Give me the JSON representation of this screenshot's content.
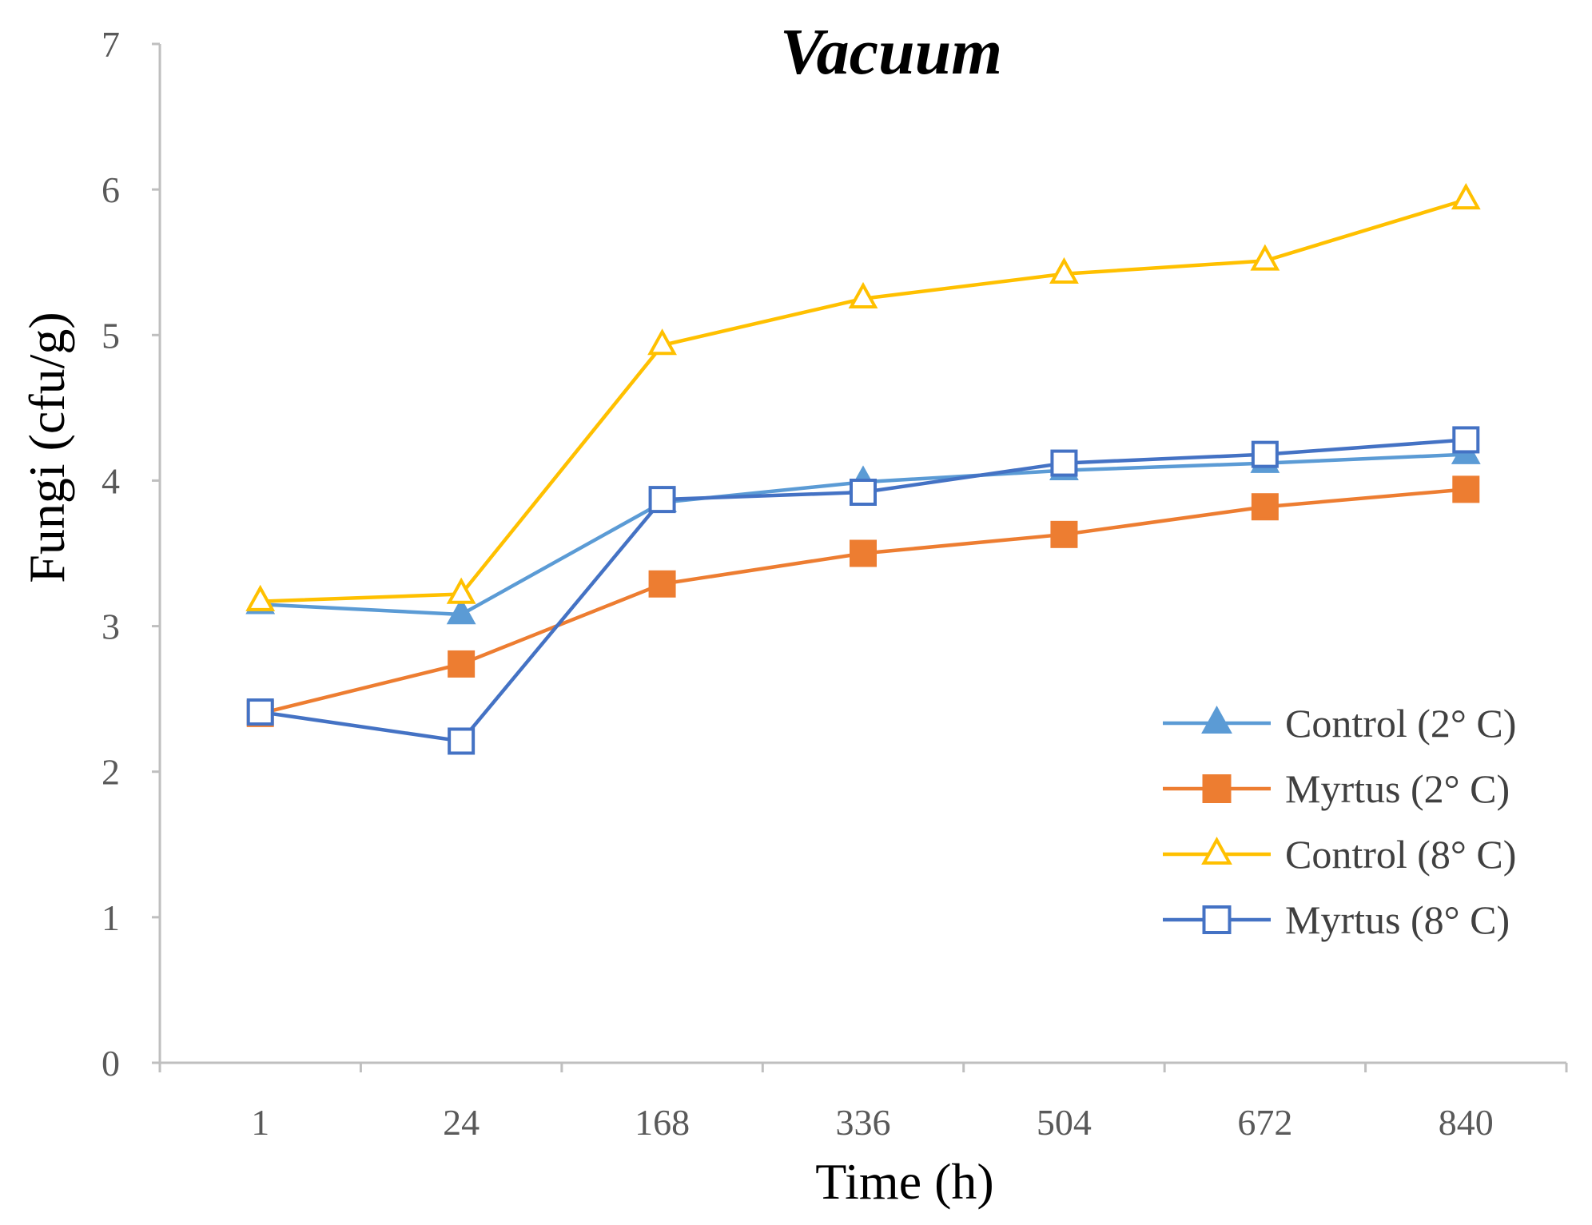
{
  "chart_data": {
    "type": "line",
    "title": "Vacuum",
    "xlabel": "Time (h)",
    "ylabel": "Fungi (cfu/g)",
    "categories": [
      "1",
      "24",
      "168",
      "336",
      "504",
      "672",
      "840"
    ],
    "ylim": [
      0,
      7
    ],
    "yticks": [
      "0",
      "1",
      "2",
      "3",
      "4",
      "5",
      "6",
      "7"
    ],
    "grid": false,
    "legend_position": "bottom-right",
    "series": [
      {
        "name": "Control (2° C)",
        "values": [
          3.15,
          3.08,
          3.85,
          3.99,
          4.07,
          4.12,
          4.18
        ],
        "color": "#5B9BD5",
        "marker": "triangle",
        "filled": true
      },
      {
        "name": "Myrtus (2° C)",
        "values": [
          2.4,
          2.74,
          3.29,
          3.5,
          3.63,
          3.82,
          3.94
        ],
        "color": "#ED7D31",
        "marker": "square",
        "filled": true
      },
      {
        "name": "Control (8° C)",
        "values": [
          3.17,
          3.22,
          4.93,
          5.25,
          5.42,
          5.51,
          5.93
        ],
        "color": "#FFC000",
        "marker": "triangle",
        "filled": false
      },
      {
        "name": "Myrtus (8° C)",
        "values": [
          2.41,
          2.21,
          3.87,
          3.92,
          4.12,
          4.18,
          4.28
        ],
        "color": "#4472C4",
        "marker": "square",
        "filled": false
      }
    ]
  }
}
